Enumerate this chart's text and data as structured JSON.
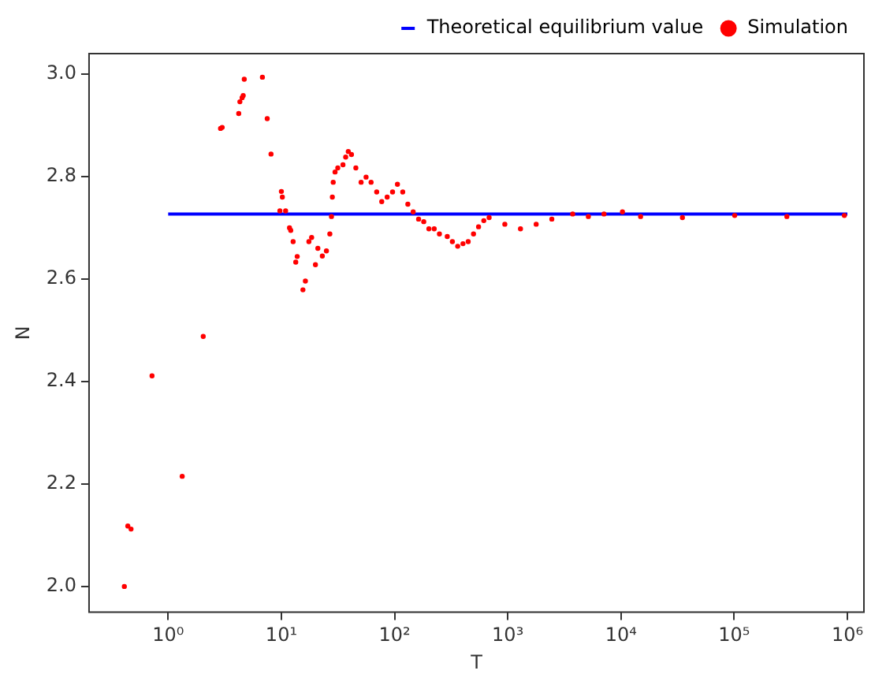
{
  "chart_data": {
    "type": "scatter",
    "xlabel": "T",
    "ylabel": "N",
    "log": "x",
    "xlim": [
      0.2,
      1400000
    ],
    "ylim": [
      1.95,
      3.04
    ],
    "xticks": [
      {
        "value": 1,
        "label": "10⁰"
      },
      {
        "value": 10,
        "label": "10¹"
      },
      {
        "value": 100,
        "label": "10²"
      },
      {
        "value": 1000,
        "label": "10³"
      },
      {
        "value": 10000,
        "label": "10⁴"
      },
      {
        "value": 100000,
        "label": "10⁵"
      },
      {
        "value": 1000000,
        "label": "10⁶"
      }
    ],
    "yticks": [
      {
        "value": 2,
        "label": "2.0"
      },
      {
        "value": 2.2,
        "label": "2.2"
      },
      {
        "value": 2.4,
        "label": "2.4"
      },
      {
        "value": 2.6,
        "label": "2.6"
      },
      {
        "value": 2.8,
        "label": "2.8"
      },
      {
        "value": 3,
        "label": "3.0"
      }
    ],
    "grid": false,
    "legend": "top right",
    "series": [
      {
        "name": "Theoretical equilibrium value",
        "type": "line",
        "color": "#0000ff",
        "line_style": "solid",
        "marker": "none",
        "x": [
          1,
          1000000
        ],
        "values": [
          2.727,
          2.727
        ]
      },
      {
        "name": "Simulation",
        "type": "scatter",
        "color": "#ff0000",
        "marker": "circle",
        "x": [
          0.41,
          0.44,
          0.47,
          0.72,
          1.33,
          2.04,
          2.9,
          3.0,
          4.2,
          4.3,
          4.5,
          4.6,
          4.7,
          6.8,
          7.5,
          8.1,
          9.7,
          10,
          10.2,
          10.9,
          11.8,
          12.1,
          12.7,
          13.4,
          13.8,
          15.5,
          16.3,
          17.5,
          18.5,
          20,
          21,
          23,
          25,
          26.8,
          27.7,
          28.2,
          28.7,
          29.8,
          31.5,
          35,
          37,
          39,
          41.6,
          45.5,
          50.6,
          56,
          62,
          69.5,
          77,
          86,
          96,
          106,
          118,
          131,
          146,
          163,
          181,
          201,
          224,
          249,
          292,
          324,
          361,
          402,
          447,
          498,
          552,
          614,
          684,
          942,
          1295,
          1782,
          2450,
          3745,
          5150,
          7080,
          10300,
          14900,
          34900,
          101000,
          292000,
          940000
        ],
        "values": [
          2.0,
          2.118,
          2.112,
          2.411,
          2.215,
          2.488,
          2.894,
          2.896,
          2.923,
          2.946,
          2.954,
          2.958,
          2.99,
          2.994,
          2.913,
          2.844,
          2.733,
          2.771,
          2.76,
          2.733,
          2.7,
          2.695,
          2.673,
          2.633,
          2.644,
          2.579,
          2.596,
          2.673,
          2.681,
          2.628,
          2.66,
          2.645,
          2.655,
          2.688,
          2.722,
          2.76,
          2.789,
          2.809,
          2.817,
          2.823,
          2.838,
          2.849,
          2.843,
          2.817,
          2.789,
          2.799,
          2.789,
          2.77,
          2.751,
          2.76,
          2.77,
          2.785,
          2.77,
          2.746,
          2.731,
          2.717,
          2.712,
          2.698,
          2.698,
          2.688,
          2.683,
          2.673,
          2.664,
          2.669,
          2.673,
          2.688,
          2.702,
          2.714,
          2.72,
          2.707,
          2.698,
          2.707,
          2.717,
          2.727,
          2.722,
          2.727,
          2.731,
          2.722,
          2.72,
          2.724,
          2.722,
          2.724
        ]
      }
    ]
  }
}
